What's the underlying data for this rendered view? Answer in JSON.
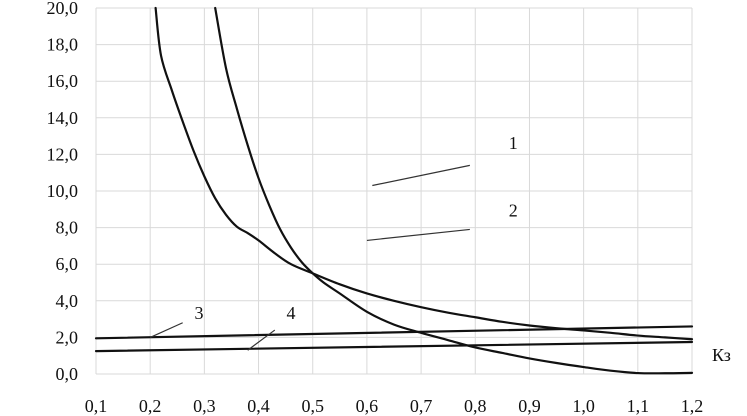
{
  "chart_data": {
    "type": "line",
    "title": "",
    "xlabel": "Кз",
    "ylabel": "",
    "xlim": [
      0.1,
      1.2
    ],
    "ylim": [
      0.0,
      20.0
    ],
    "grid": true,
    "x_ticks": [
      "0,1",
      "0,2",
      "0,3",
      "0,4",
      "0,5",
      "0,6",
      "0,7",
      "0,8",
      "0,9",
      "1,0",
      "1,1",
      "1,2"
    ],
    "y_ticks": [
      "0,0",
      "2,0",
      "4,0",
      "6,0",
      "8,0",
      "10,0",
      "12,0",
      "14,0",
      "16,0",
      "18,0",
      "20,0"
    ],
    "series": [
      {
        "name": "1",
        "x": [
          0.32,
          0.34,
          0.36,
          0.38,
          0.4,
          0.42,
          0.44,
          0.46,
          0.48,
          0.5,
          0.52,
          0.55,
          0.6,
          0.65,
          0.7,
          0.75,
          0.8,
          0.85,
          0.9,
          0.95,
          1.0,
          1.05,
          1.1,
          1.15,
          1.2
        ],
        "y": [
          20.0,
          16.7,
          14.5,
          12.5,
          10.7,
          9.2,
          7.9,
          6.9,
          6.1,
          5.5,
          5.0,
          4.4,
          3.4,
          2.7,
          2.25,
          1.85,
          1.45,
          1.15,
          0.85,
          0.6,
          0.38,
          0.18,
          0.05,
          0.04,
          0.06
        ]
      },
      {
        "name": "2",
        "x": [
          0.21,
          0.22,
          0.24,
          0.26,
          0.28,
          0.3,
          0.32,
          0.34,
          0.36,
          0.38,
          0.4,
          0.43,
          0.46,
          0.5,
          0.55,
          0.6,
          0.65,
          0.7,
          0.75,
          0.8,
          0.85,
          0.9,
          0.95,
          1.0,
          1.05,
          1.1,
          1.15,
          1.2
        ],
        "y": [
          20.0,
          17.4,
          15.5,
          13.8,
          12.2,
          10.8,
          9.6,
          8.7,
          8.05,
          7.7,
          7.3,
          6.6,
          6.0,
          5.5,
          4.9,
          4.4,
          4.0,
          3.65,
          3.35,
          3.1,
          2.85,
          2.65,
          2.5,
          2.38,
          2.25,
          2.1,
          2.0,
          1.9
        ]
      },
      {
        "name": "3",
        "x": [
          0.1,
          1.2
        ],
        "y": [
          1.95,
          2.6
        ]
      },
      {
        "name": "4",
        "x": [
          0.1,
          1.2
        ],
        "y": [
          1.25,
          1.75
        ]
      }
    ],
    "labels": [
      {
        "text": "1",
        "x": 0.87,
        "y": 12.3,
        "line_x1": 0.79,
        "line_y1": 11.4,
        "line_x2": 0.61,
        "line_y2": 10.3
      },
      {
        "text": "2",
        "x": 0.87,
        "y": 8.6,
        "line_x1": 0.79,
        "line_y1": 7.9,
        "line_x2": 0.6,
        "line_y2": 7.3
      },
      {
        "text": "3",
        "x": 0.29,
        "y": 3.0,
        "line_x1": 0.26,
        "line_y1": 2.8,
        "line_x2": 0.2,
        "line_y2": 2.0
      },
      {
        "text": "4",
        "x": 0.46,
        "y": 3.0,
        "line_x1": 0.43,
        "line_y1": 2.4,
        "line_x2": 0.38,
        "line_y2": 1.3
      }
    ]
  }
}
